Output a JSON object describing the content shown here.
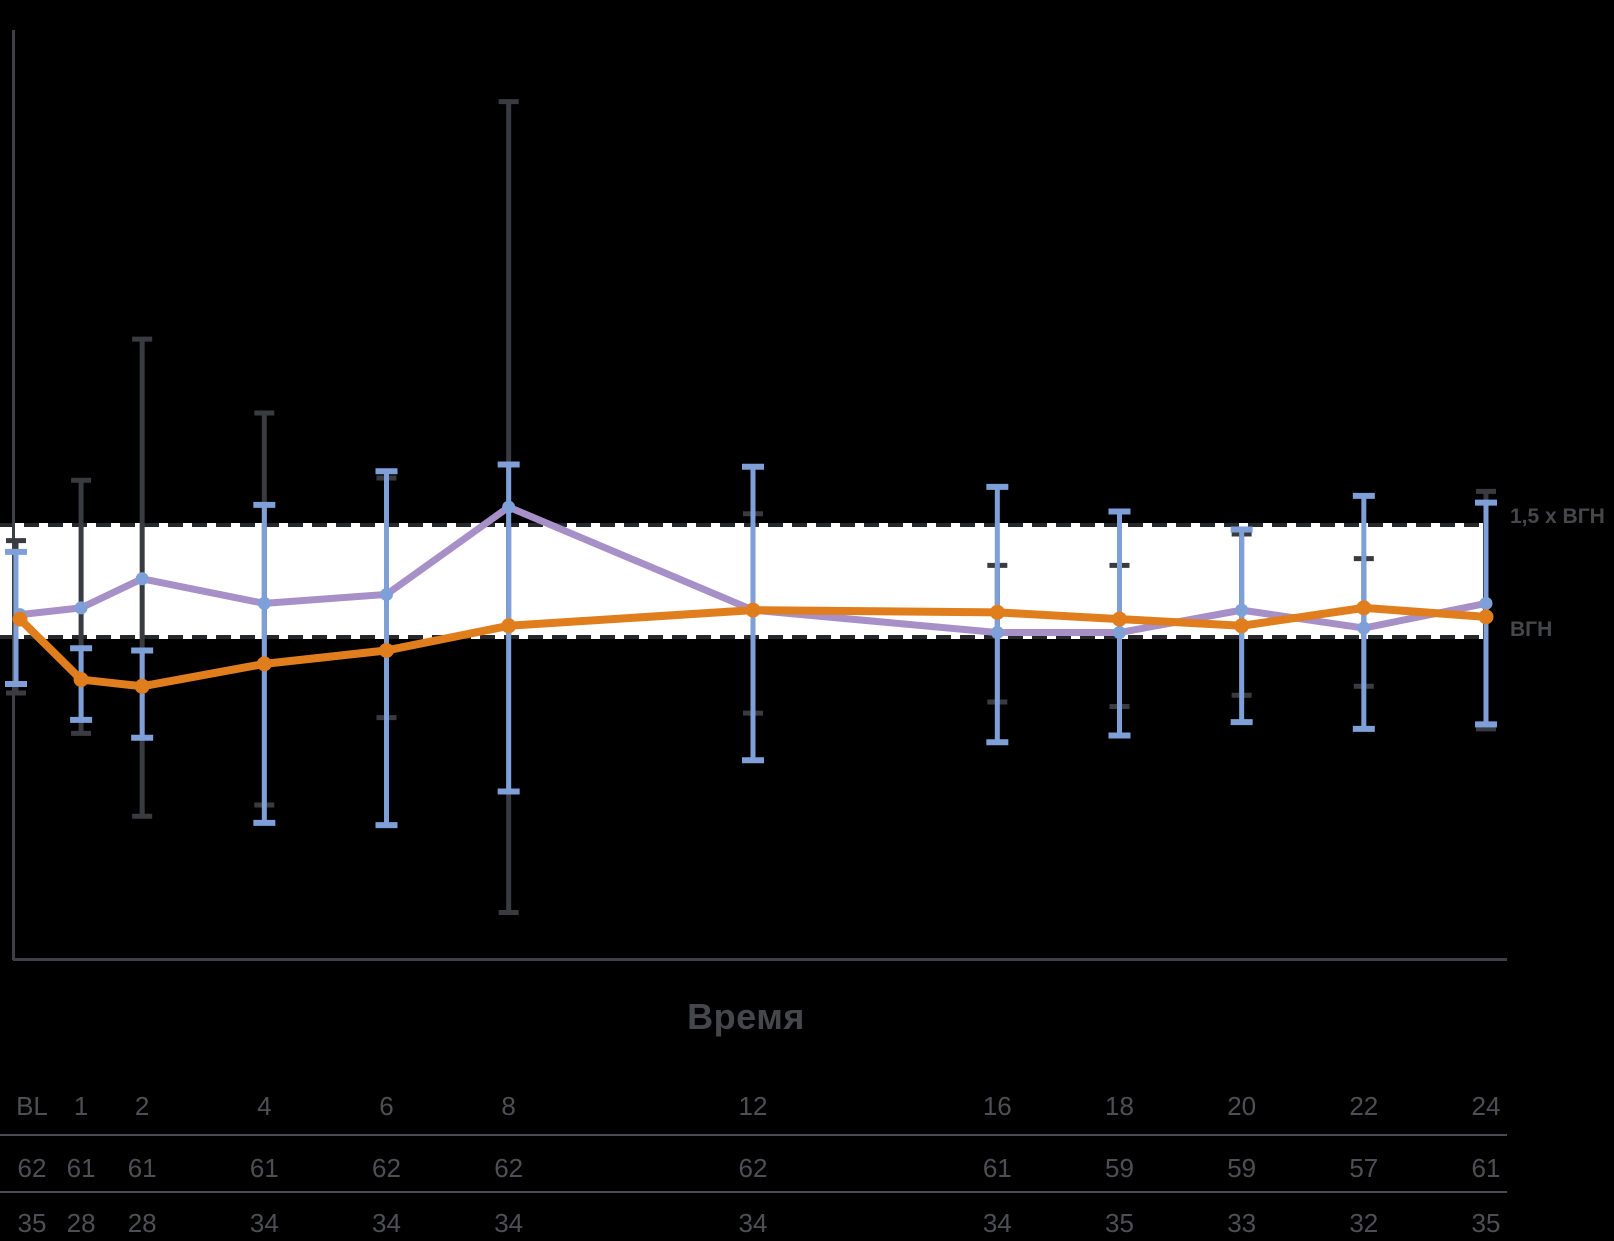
{
  "background": "#000000",
  "colors": {
    "purple_line": "#A78FC7",
    "blue_marker": "#7F9FD8",
    "orange_line": "#E07E1E",
    "dark_error_bar": "#3A3B40",
    "axis": "#3F4045",
    "dashed_line": "#26272B",
    "band_fill": "#FFFFFF",
    "text_gray": "#4E4F54",
    "divider": "#4A4B50"
  },
  "reference_band": {
    "upper_label": "1,5 x ВГН",
    "lower_label": "ВГН"
  },
  "chart_data": {
    "type": "line",
    "title": "",
    "xlabel": "Время",
    "ylabel": "",
    "grid": false,
    "legend": "none",
    "x_tick_labels": [
      "BL",
      "1",
      "2",
      "4",
      "6",
      "8",
      "12",
      "16",
      "18",
      "20",
      "22",
      "24"
    ],
    "x_values": [
      0,
      1,
      2,
      4,
      6,
      8,
      12,
      16,
      18,
      20,
      22,
      24
    ],
    "y_unit": "multiples of ULN (ВГН)",
    "reference_lines": [
      {
        "label": "1,5 x ВГН",
        "value": 1.5,
        "style": "dashed"
      },
      {
        "label": "ВГН",
        "value": 1.0,
        "style": "dashed"
      }
    ],
    "band": {
      "from": 1.0,
      "to": 1.5,
      "fill": "white"
    },
    "series": [
      {
        "name": "series-purple",
        "values": [
          1.1,
          1.13,
          1.26,
          1.15,
          1.19,
          1.58,
          1.12,
          1.02,
          1.02,
          1.12,
          1.04,
          1.15
        ],
        "error_upper": [
          1.43,
          1.7,
          2.33,
          2.0,
          1.71,
          3.39,
          1.55,
          1.32,
          1.32,
          1.46,
          1.35,
          1.65
        ],
        "error_lower": [
          0.75,
          0.57,
          0.2,
          0.25,
          0.64,
          -0.23,
          0.66,
          0.71,
          0.69,
          0.74,
          0.78,
          0.59
        ]
      },
      {
        "name": "series-orange",
        "values": [
          1.08,
          0.81,
          0.78,
          0.88,
          0.94,
          1.05,
          1.12,
          1.11,
          1.08,
          1.05,
          1.13,
          1.09
        ],
        "error_upper": [
          1.38,
          0.95,
          0.94,
          1.59,
          1.74,
          1.77,
          1.76,
          1.67,
          1.56,
          1.48,
          1.63,
          1.6
        ],
        "error_lower": [
          0.79,
          0.63,
          0.55,
          0.17,
          0.16,
          0.31,
          0.45,
          0.53,
          0.56,
          0.62,
          0.59,
          0.61
        ]
      }
    ],
    "n_table": {
      "rows": [
        {
          "values": [
            62,
            61,
            61,
            61,
            62,
            62,
            62,
            61,
            59,
            59,
            57,
            61
          ]
        },
        {
          "values": [
            35,
            28,
            28,
            34,
            34,
            34,
            34,
            34,
            35,
            33,
            32,
            35
          ]
        }
      ]
    }
  }
}
